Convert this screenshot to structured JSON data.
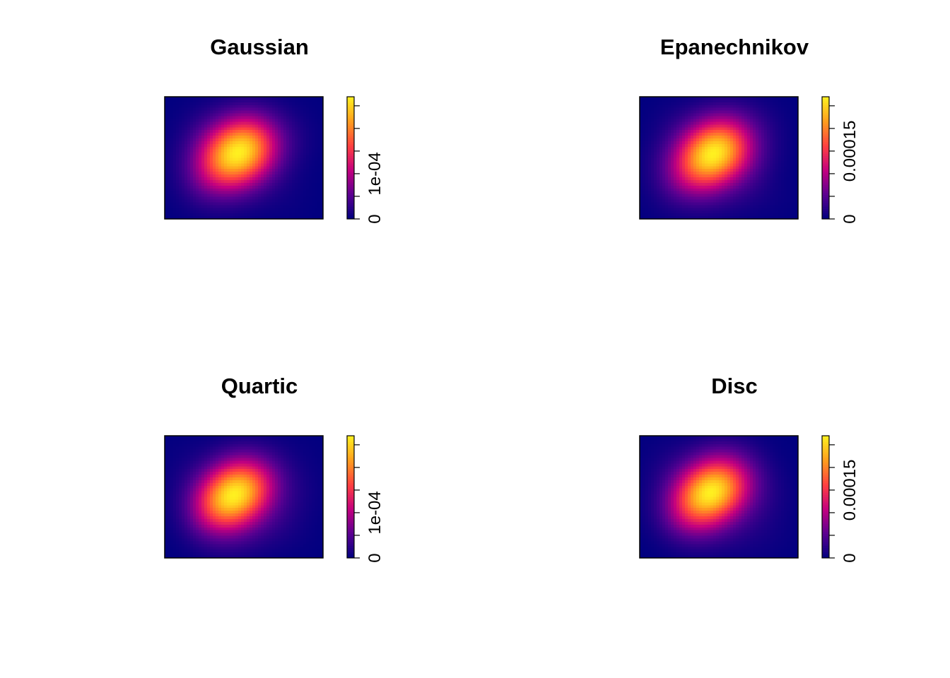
{
  "chart_data": [
    {
      "type": "heatmap",
      "title": "Gaussian",
      "xlabel": "",
      "ylabel": "",
      "colorbar": {
        "range": [
          0,
          0.00027
        ],
        "ticks": [
          0,
          5e-05,
          0.0001,
          0.00015,
          0.0002,
          0.00025
        ],
        "tick_labels": [
          "0",
          "",
          "1e-04",
          "",
          "",
          ""
        ],
        "colors": [
          "#00007F",
          "#5B0091",
          "#C4007F",
          "#FF4040",
          "#FF9E1E",
          "#FFF020"
        ]
      },
      "peak": 0.00027
    },
    {
      "type": "heatmap",
      "title": "Epanechnikov",
      "xlabel": "",
      "ylabel": "",
      "colorbar": {
        "range": [
          0,
          0.00027
        ],
        "ticks": [
          0,
          5e-05,
          0.0001,
          0.00015,
          0.0002,
          0.00025
        ],
        "tick_labels": [
          "0",
          "",
          "",
          "0.00015",
          "",
          ""
        ],
        "colors": [
          "#00007F",
          "#5B0091",
          "#C4007F",
          "#FF4040",
          "#FF9E1E",
          "#FFF020"
        ]
      },
      "peak": 0.00027
    },
    {
      "type": "heatmap",
      "title": "Quartic",
      "xlabel": "",
      "ylabel": "",
      "colorbar": {
        "range": [
          0,
          0.00027
        ],
        "ticks": [
          0,
          5e-05,
          0.0001,
          0.00015,
          0.0002,
          0.00025
        ],
        "tick_labels": [
          "0",
          "",
          "1e-04",
          "",
          "",
          ""
        ],
        "colors": [
          "#00007F",
          "#5B0091",
          "#C4007F",
          "#FF4040",
          "#FF9E1E",
          "#FFF020"
        ]
      },
      "peak": 0.00027
    },
    {
      "type": "heatmap",
      "title": "Disc",
      "xlabel": "",
      "ylabel": "",
      "colorbar": {
        "range": [
          0,
          0.00027
        ],
        "ticks": [
          0,
          5e-05,
          0.0001,
          0.00015,
          0.0002,
          0.00025
        ],
        "tick_labels": [
          "0",
          "",
          "",
          "0.00015",
          "",
          ""
        ],
        "colors": [
          "#00007F",
          "#5B0091",
          "#C4007F",
          "#FF4040",
          "#FF9E1E",
          "#FFF020"
        ]
      },
      "peak": 0.00027
    }
  ]
}
